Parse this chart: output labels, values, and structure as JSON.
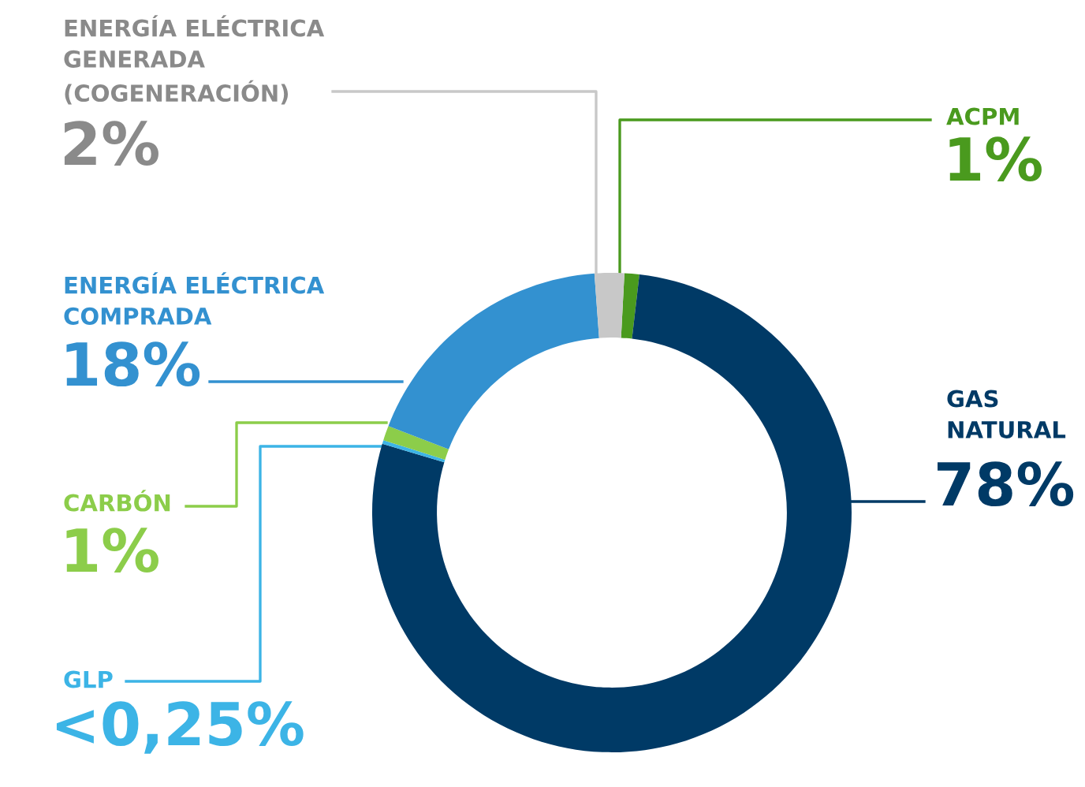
{
  "chart_data": {
    "type": "donut",
    "categories": [
      "ACPM",
      "GAS\nNATURAL",
      "GLP",
      "CARBÓN",
      "ENERGÍA ELÉCTRICA\nCOMPRADA",
      "ENERGÍA ELÉCTRICA\nGENERADA\n(COGENERACIÓN)"
    ],
    "values": [
      1,
      78,
      0.25,
      1,
      18,
      2
    ],
    "value_labels": [
      "1%",
      "78%",
      "<0,25%",
      "1%",
      "18%",
      "2%"
    ],
    "colors": [
      "#4a9a1e",
      "#003a66",
      "#3cb4e6",
      "#8ccd4a",
      "#3391d0",
      "#c8c8c8"
    ],
    "legend": false
  }
}
